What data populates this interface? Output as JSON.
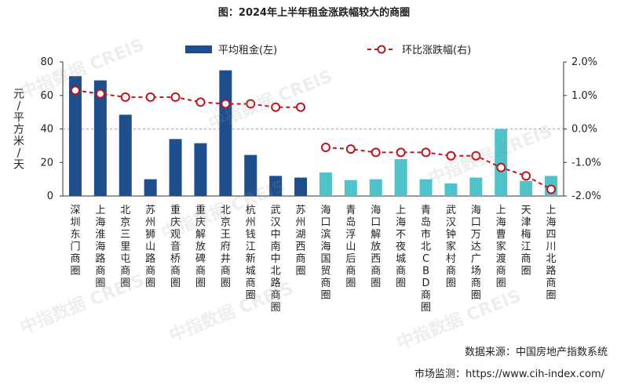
{
  "chart_data": {
    "type": "bar",
    "title": "图：2024年上半年租金涨跌幅较大的商圈",
    "categories": [
      "深圳东门商圈",
      "上海淮海路商圈",
      "北京三里屯商圈",
      "苏州狮山路商圈",
      "重庆观音桥商圈",
      "重庆解放碑商圈",
      "北京王府井商圈",
      "杭州钱江新城商圈",
      "武汉中南中北路商圈",
      "苏州湖西商圈",
      "海口滨海国贸商圈",
      "青岛浮山后商圈",
      "海口解放西商圈",
      "上海不夜城商圈",
      "青岛市北CBD商圈",
      "武汉钟家村商圈",
      "海口万达广场商圈",
      "上海曹家渡商圈",
      "天津梅江商圈",
      "上海四川北路商圈"
    ],
    "series": [
      {
        "name": "平均租金(左)",
        "type": "bar",
        "axis": "left",
        "values": [
          71.5,
          69,
          48.5,
          10,
          34,
          31.5,
          75,
          24.5,
          12,
          11,
          14,
          9.5,
          10,
          22,
          10,
          7.5,
          11,
          40,
          9,
          12
        ],
        "colors": [
          "#1f4e8c",
          "#1f4e8c",
          "#1f4e8c",
          "#1f4e8c",
          "#1f4e8c",
          "#1f4e8c",
          "#1f4e8c",
          "#1f4e8c",
          "#1f4e8c",
          "#1f4e8c",
          "#4fc3c9",
          "#4fc3c9",
          "#4fc3c9",
          "#4fc3c9",
          "#4fc3c9",
          "#4fc3c9",
          "#4fc3c9",
          "#4fc3c9",
          "#4fc3c9",
          "#4fc3c9"
        ]
      },
      {
        "name": "环比涨跌幅(右)",
        "type": "line",
        "axis": "right",
        "unit": "%",
        "values": [
          1.15,
          1.05,
          0.95,
          0.95,
          0.95,
          0.8,
          0.75,
          0.75,
          0.65,
          0.65,
          -0.55,
          -0.6,
          -0.7,
          -0.7,
          -0.7,
          -0.8,
          -0.8,
          -1.15,
          -1.4,
          -1.8
        ],
        "color": "#c0141c"
      }
    ],
    "ylabel": "元/平方米/天",
    "ylim": [
      0,
      80
    ],
    "yticks": [
      "0",
      "20",
      "40",
      "60",
      "80"
    ],
    "y2lim": [
      -2.0,
      2.0
    ],
    "y2ticks": [
      "-2.0%",
      "-1.0%",
      "0.0%",
      "1.0%",
      "2.0%"
    ],
    "legend_position": "top-center",
    "reference_line": "0.0% dashed"
  },
  "footer": {
    "source": "数据来源：中国房地产指数系统",
    "monitor": "市场监测：https://www.cih-index.com/"
  },
  "watermark_text": "中指数据 CREIS"
}
